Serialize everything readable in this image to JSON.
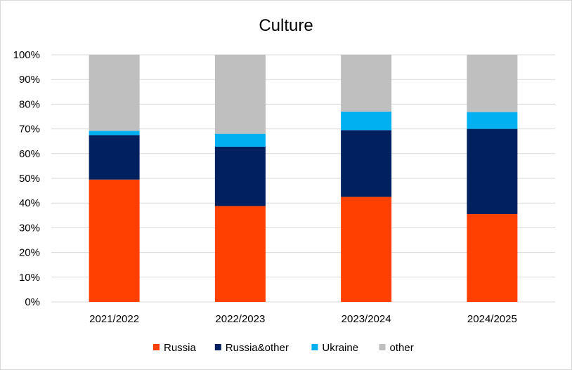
{
  "chart_data": {
    "type": "bar",
    "stacked": true,
    "title": "Culture",
    "xlabel": "",
    "ylabel": "",
    "categories": [
      "2021/2022",
      "2022/2023",
      "2023/2024",
      "2024/2025"
    ],
    "ylim": [
      0,
      100
    ],
    "yticks": [
      0,
      10,
      20,
      30,
      40,
      50,
      60,
      70,
      80,
      90,
      100
    ],
    "ytick_labels": [
      "0%",
      "10%",
      "20%",
      "30%",
      "40%",
      "50%",
      "60%",
      "70%",
      "80%",
      "90%",
      "100%"
    ],
    "grid": true,
    "legend_position": "bottom",
    "series": [
      {
        "name": "Russia",
        "color": "#ff4000",
        "values": [
          49.5,
          38.8,
          42.5,
          35.5
        ]
      },
      {
        "name": "Russia&other",
        "color": "#002060",
        "values": [
          18.0,
          24.0,
          27.0,
          34.5
        ]
      },
      {
        "name": "Ukraine",
        "color": "#00b0f0",
        "values": [
          1.7,
          5.2,
          7.5,
          6.8
        ]
      },
      {
        "name": "other",
        "color": "#bfbfbf",
        "values": [
          30.8,
          32.0,
          23.0,
          23.2
        ]
      }
    ]
  }
}
